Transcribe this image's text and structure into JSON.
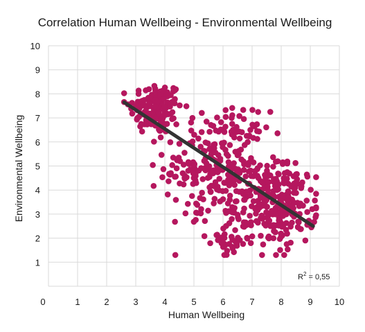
{
  "chart_data": {
    "type": "scatter",
    "title": "Correlation Human Wellbeing - Environmental Wellbeing",
    "xlabel": "Human Wellbeing",
    "ylabel": "Environmental Wellbeing",
    "xlim": [
      0,
      10
    ],
    "ylim": [
      0,
      10
    ],
    "x_ticks": [
      "0",
      "1",
      "2",
      "3",
      "4",
      "5",
      "6",
      "7",
      "8",
      "9",
      "10"
    ],
    "y_ticks": [
      "1",
      "2",
      "3",
      "4",
      "5",
      "6",
      "7",
      "8",
      "9",
      "10"
    ],
    "grid": true,
    "point_color": "#b5175e",
    "trend_color": "#333333",
    "trendline": {
      "x": [
        2.6,
        9.1
      ],
      "y": [
        7.65,
        2.5
      ]
    },
    "annotation": {
      "prefix": "R",
      "superscript": "2",
      "suffix": " = 0,55"
    },
    "clusters": [
      {
        "cx": 3.7,
        "cy": 7.4,
        "sx": 0.45,
        "sy": 0.55,
        "n": 150
      },
      {
        "cx": 5.6,
        "cy": 5.0,
        "sx": 0.8,
        "sy": 1.0,
        "n": 190
      },
      {
        "cx": 6.7,
        "cy": 3.4,
        "sx": 0.7,
        "sy": 0.9,
        "n": 120
      },
      {
        "cx": 8.1,
        "cy": 3.4,
        "sx": 0.55,
        "sy": 0.85,
        "n": 190
      },
      {
        "cx": 6.4,
        "cy": 6.3,
        "sx": 0.6,
        "sy": 0.6,
        "n": 40
      },
      {
        "cx": 6.2,
        "cy": 1.8,
        "sx": 0.35,
        "sy": 0.25,
        "n": 25
      }
    ]
  }
}
